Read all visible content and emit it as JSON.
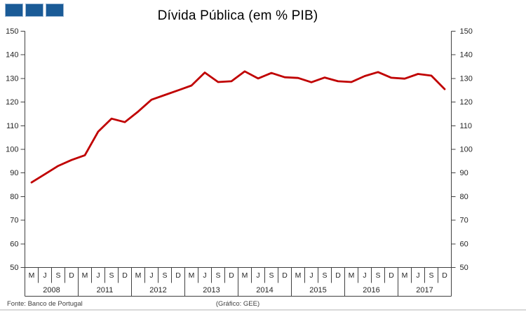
{
  "header": {
    "logo": {
      "squares": 3,
      "color": "#1a5b97",
      "border_color": "#9db9d6"
    }
  },
  "title": "Dívida Pública (em % PIB)",
  "footer": {
    "source": "Fonte: Banco de Portugal",
    "credit": "(Gráfico: GEE)"
  },
  "chart_data": {
    "type": "line",
    "title": "Dívida Pública (em % PIB)",
    "line_color": "#c00000",
    "axis_color": "#404040",
    "text_color": "#262626",
    "grid": false,
    "legend": "none",
    "y_axis": {
      "min": 50,
      "max": 150,
      "step": 10,
      "ticks": [
        150,
        140,
        130,
        120,
        110,
        100,
        90,
        80,
        70,
        60,
        50
      ],
      "dual": true
    },
    "x_axis": {
      "quarter_labels": [
        "M",
        "J",
        "S",
        "D"
      ],
      "years": [
        "2008",
        "2011",
        "2012",
        "2013",
        "2014",
        "2015",
        "2016",
        "2017"
      ]
    },
    "series": [
      {
        "name": "Dívida Pública (em % PIB)",
        "values": [
          86,
          89.5,
          93,
          95.5,
          97.5,
          107.5,
          113,
          111.5,
          116,
          121,
          123,
          125,
          127,
          132.5,
          128.5,
          128.8,
          133,
          130,
          132.3,
          130.5,
          130.2,
          128.4,
          130.4,
          128.8,
          128.5,
          131,
          132.7,
          130.3,
          129.9,
          131.9,
          131.2,
          125.5
        ]
      }
    ]
  }
}
